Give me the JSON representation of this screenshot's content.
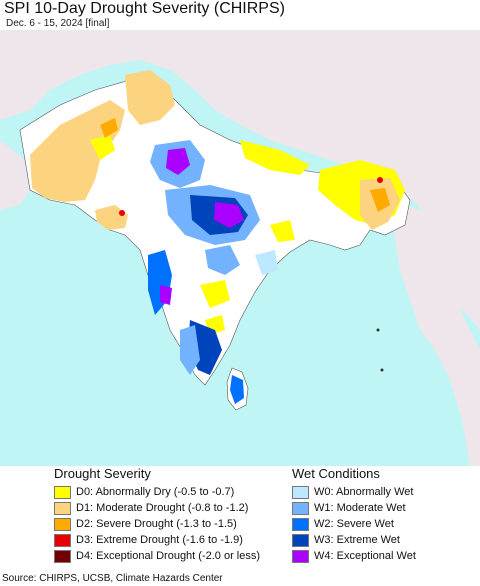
{
  "header": {
    "title": "SPI 10-Day Drought Severity (CHIRPS)",
    "subtitle": "Dec. 6 - 15, 2024 [final]"
  },
  "colors": {
    "ocean": "#bff5f5",
    "land": "#ffffff",
    "outside_land": "#efe6ec",
    "border": "#555555"
  },
  "legend": {
    "drought_title": "Drought Severity",
    "drought": [
      {
        "label": "D0: Abnormally Dry (-0.5 to -0.7)",
        "color": "#ffff00"
      },
      {
        "label": "D1: Moderate Drought (-0.8 to -1.2)",
        "color": "#fcd37f"
      },
      {
        "label": "D2: Severe Drought (-1.3 to -1.5)",
        "color": "#ffaa00"
      },
      {
        "label": "D3: Extreme Drought (-1.6 to -1.9)",
        "color": "#e60000"
      },
      {
        "label": "D4: Exceptional Drought (-2.0 or less)",
        "color": "#730000"
      }
    ],
    "wet_title": "Wet Conditions",
    "wet": [
      {
        "label": "W0: Abnormally Wet",
        "color": "#bee8ff"
      },
      {
        "label": "W1: Moderate Wet",
        "color": "#73b2ff"
      },
      {
        "label": "W2: Severe Wet",
        "color": "#0070ff"
      },
      {
        "label": "W3: Extreme Wet",
        "color": "#0044bb"
      },
      {
        "label": "W4: Exceptional Wet",
        "color": "#aa00ff"
      }
    ]
  },
  "footer": {
    "source": "Source: CHIRPS, UCSB, Climate Hazards Center"
  }
}
